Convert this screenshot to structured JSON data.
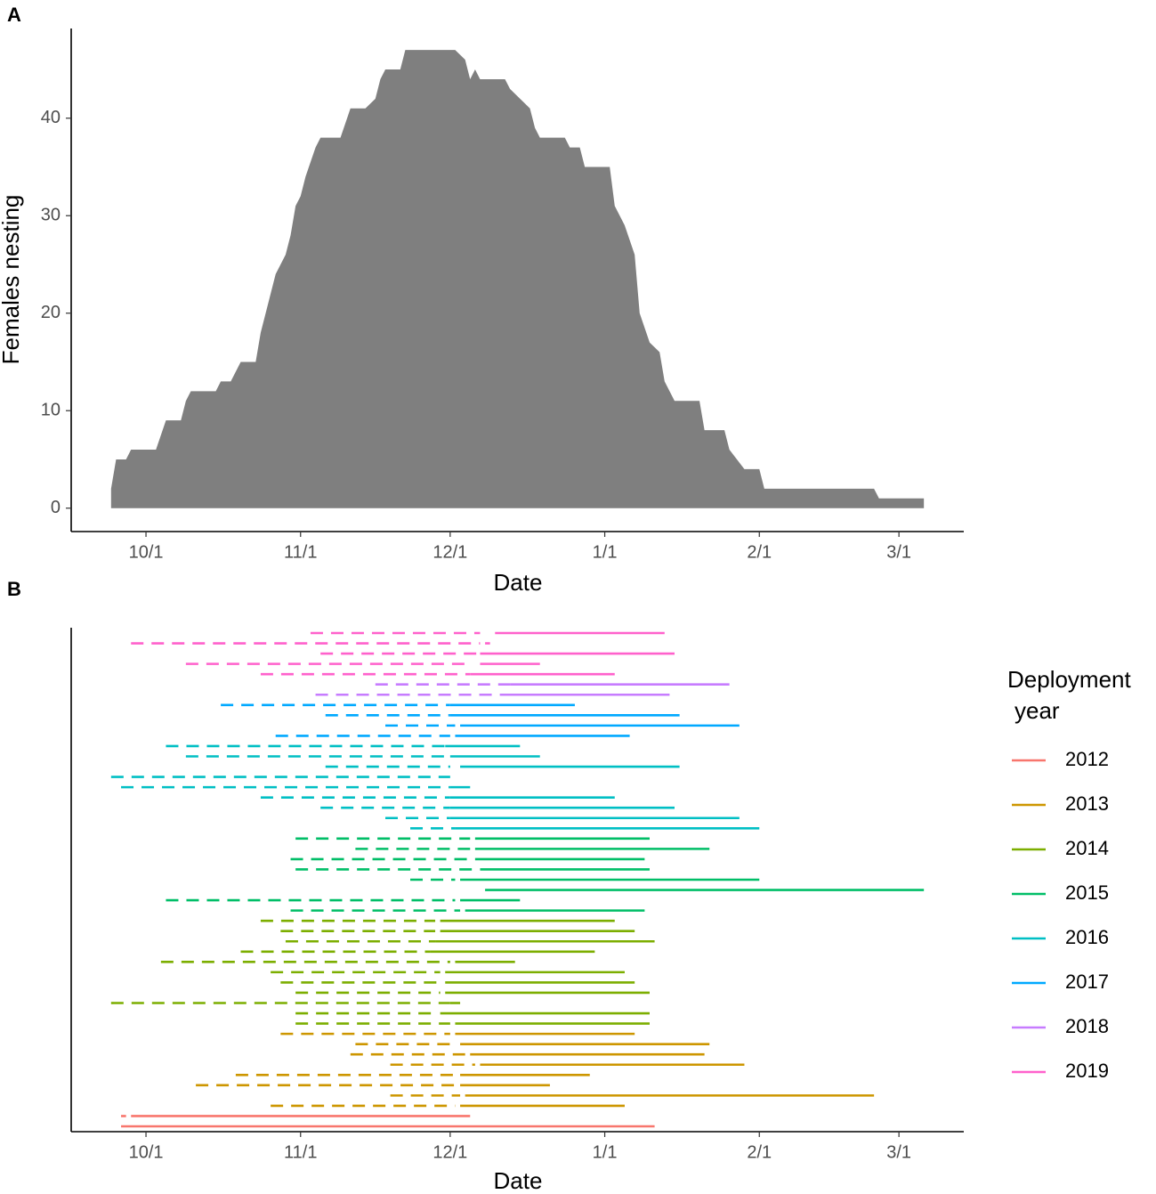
{
  "chart_data": [
    {
      "type": "area",
      "tag": "A",
      "xlabel": "Date",
      "ylabel": "Females nesting",
      "color": "#7f7f7f",
      "xlim": [
        "9/16",
        "3/14"
      ],
      "xticks": [
        "10/1",
        "11/1",
        "12/1",
        "1/1",
        "2/1",
        "3/1"
      ],
      "ylim": [
        -2.4,
        49.2
      ],
      "yticks": [
        0,
        10,
        20,
        30,
        40
      ],
      "x": [
        "9/24",
        "9/25",
        "9/27",
        "9/28",
        "10/3",
        "10/5",
        "10/8",
        "10/9",
        "10/10",
        "10/15",
        "10/16",
        "10/18",
        "10/20",
        "10/23",
        "10/24",
        "10/25",
        "10/27",
        "10/29",
        "10/30",
        "10/31",
        "11/1",
        "11/2",
        "11/4",
        "11/5",
        "11/9",
        "11/11",
        "11/14",
        "11/16",
        "11/17",
        "11/18",
        "11/21",
        "11/22",
        "12/2",
        "12/4",
        "12/5",
        "12/6",
        "12/7",
        "12/12",
        "12/13",
        "12/17",
        "12/18",
        "12/19",
        "12/24",
        "12/25",
        "12/27",
        "12/28",
        "1/2",
        "1/3",
        "1/5",
        "1/7",
        "1/8",
        "1/10",
        "1/12",
        "1/13",
        "1/15",
        "1/20",
        "1/21",
        "1/25",
        "1/26",
        "1/29",
        "2/1",
        "2/2",
        "2/24",
        "2/25",
        "3/6"
      ],
      "values": [
        2,
        5,
        5,
        6,
        6,
        9,
        9,
        11,
        12,
        12,
        13,
        13,
        15,
        15,
        18,
        20,
        24,
        26,
        28,
        31,
        32,
        34,
        37,
        38,
        38,
        41,
        41,
        42,
        44,
        45,
        45,
        47,
        47,
        46,
        44,
        45,
        44,
        44,
        43,
        41,
        39,
        38,
        38,
        37,
        37,
        35,
        35,
        31,
        29,
        26,
        20,
        17,
        16,
        13,
        11,
        11,
        8,
        8,
        6,
        4,
        4,
        2,
        2,
        1,
        1
      ]
    },
    {
      "type": "segment",
      "tag": "B",
      "xlabel": "Date",
      "legend_title": [
        "Deployment",
        "year"
      ],
      "xlim": [
        "9/16",
        "3/14"
      ],
      "xticks": [
        "10/1",
        "11/1",
        "12/1",
        "1/1",
        "2/1",
        "3/1"
      ],
      "series": [
        {
          "name": "2012",
          "color": "#F8766D",
          "rows": [
            {
              "pre": [
                "9/26",
                "9/27"
              ],
              "nest": [
                "9/28",
                "12/5"
              ]
            },
            {
              "pre": null,
              "nest": [
                "9/26",
                "1/11"
              ]
            }
          ]
        },
        {
          "name": "2013",
          "color": "#CD9600",
          "rows": [
            {
              "pre": [
                "10/28",
                "12/1"
              ],
              "nest": [
                "12/2",
                "1/7"
              ]
            },
            {
              "pre": [
                "11/12",
                "12/2"
              ],
              "nest": [
                "12/3",
                "1/22"
              ]
            },
            {
              "pre": [
                "11/11",
                "12/4"
              ],
              "nest": [
                "12/5",
                "1/21"
              ]
            },
            {
              "pre": [
                "11/19",
                "12/6"
              ],
              "nest": [
                "12/7",
                "1/29"
              ]
            },
            {
              "pre": [
                "10/19",
                "12/2"
              ],
              "nest": [
                "12/3",
                "12/29"
              ]
            },
            {
              "pre": [
                "10/11",
                "12/2"
              ],
              "nest": [
                "12/3",
                "12/21"
              ]
            },
            {
              "pre": [
                "11/19",
                "12/3"
              ],
              "nest": [
                "12/4",
                "2/24"
              ]
            },
            {
              "pre": [
                "10/26",
                "12/2"
              ],
              "nest": [
                "12/3",
                "1/5"
              ]
            }
          ]
        },
        {
          "name": "2014",
          "color": "#7CAE00",
          "rows": [
            {
              "pre": [
                "10/24",
                "11/28"
              ],
              "nest": [
                "11/29",
                "1/3"
              ]
            },
            {
              "pre": [
                "10/28",
                "11/28"
              ],
              "nest": [
                "11/29",
                "1/7"
              ]
            },
            {
              "pre": [
                "10/29",
                "11/28"
              ],
              "nest": [
                "11/28",
                "1/11"
              ]
            },
            {
              "pre": [
                "10/20",
                "11/27"
              ],
              "nest": [
                "11/27",
                "12/30"
              ]
            },
            {
              "pre": [
                "10/4",
                "12/1"
              ],
              "nest": [
                "12/2",
                "12/14"
              ]
            },
            {
              "pre": [
                "10/26",
                "11/29"
              ],
              "nest": [
                "11/30",
                "1/5"
              ]
            },
            {
              "pre": [
                "10/28",
                "11/29"
              ],
              "nest": [
                "11/30",
                "1/7"
              ]
            },
            {
              "pre": [
                "10/31",
                "11/29"
              ],
              "nest": [
                "11/30",
                "1/10"
              ]
            },
            {
              "pre": [
                "9/24",
                "12/1"
              ],
              "nest": [
                "12/1",
                "12/3"
              ]
            },
            {
              "pre": [
                "10/31",
                "11/28"
              ],
              "nest": [
                "11/29",
                "1/10"
              ]
            },
            {
              "pre": [
                "10/31",
                "12/1"
              ],
              "nest": [
                "12/2",
                "1/10"
              ]
            }
          ]
        },
        {
          "name": "2015",
          "color": "#00BE67",
          "rows": [
            {
              "pre": [
                "10/31",
                "12/5"
              ],
              "nest": [
                "12/6",
                "1/10"
              ]
            },
            {
              "pre": [
                "11/12",
                "12/5"
              ],
              "nest": [
                "12/6",
                "1/22"
              ]
            },
            {
              "pre": [
                "10/30",
                "12/5"
              ],
              "nest": [
                "12/6",
                "1/9"
              ]
            },
            {
              "pre": [
                "10/31",
                "12/6"
              ],
              "nest": [
                "12/7",
                "1/10"
              ]
            },
            {
              "pre": [
                "11/23",
                "12/2"
              ],
              "nest": [
                "12/3",
                "2/1"
              ]
            },
            {
              "pre": null,
              "nest": [
                "12/8",
                "3/6"
              ]
            },
            {
              "pre": [
                "10/5",
                "12/2"
              ],
              "nest": [
                "12/3",
                "12/15"
              ]
            },
            {
              "pre": [
                "10/30",
                "12/3"
              ],
              "nest": [
                "12/4",
                "1/9"
              ]
            }
          ]
        },
        {
          "name": "2016",
          "color": "#00BFC4",
          "rows": [
            {
              "pre": [
                "10/5",
                "11/30"
              ],
              "nest": [
                "11/30",
                "12/15"
              ]
            },
            {
              "pre": [
                "10/9",
                "12/1"
              ],
              "nest": [
                "12/1",
                "12/19"
              ]
            },
            {
              "pre": [
                "11/6",
                "12/1"
              ],
              "nest": [
                "12/3",
                "1/16"
              ]
            },
            {
              "pre": [
                "9/24",
                "12/1"
              ],
              "nest": null
            },
            {
              "pre": [
                "9/26",
                "12/1"
              ],
              "nest": [
                "12/1",
                "12/5"
              ]
            },
            {
              "pre": [
                "10/24",
                "12/1"
              ],
              "nest": [
                "12/1",
                "1/3"
              ]
            },
            {
              "pre": [
                "11/5",
                "12/1"
              ],
              "nest": [
                "12/1",
                "1/15"
              ]
            },
            {
              "pre": [
                "11/18",
                "12/1"
              ],
              "nest": [
                "12/1",
                "1/28"
              ]
            },
            {
              "pre": [
                "11/23",
                "12/2"
              ],
              "nest": [
                "12/2",
                "2/1"
              ]
            }
          ]
        },
        {
          "name": "2017",
          "color": "#00A9FF",
          "rows": [
            {
              "pre": [
                "10/16",
                "12/1"
              ],
              "nest": [
                "12/1",
                "12/26"
              ]
            },
            {
              "pre": [
                "11/6",
                "12/1"
              ],
              "nest": [
                "12/1",
                "1/16"
              ]
            },
            {
              "pre": [
                "11/18",
                "12/2"
              ],
              "nest": [
                "12/3",
                "1/28"
              ]
            },
            {
              "pre": [
                "10/27",
                "12/1"
              ],
              "nest": [
                "12/2",
                "1/6"
              ]
            }
          ]
        },
        {
          "name": "2018",
          "color": "#C77CFF",
          "rows": [
            {
              "pre": [
                "11/16",
                "12/13"
              ],
              "nest": [
                "12/13",
                "1/26"
              ]
            },
            {
              "pre": [
                "11/4",
                "12/11"
              ],
              "nest": [
                "12/11",
                "1/14"
              ]
            }
          ]
        },
        {
          "name": "2019",
          "color": "#FF61CC",
          "rows": [
            {
              "pre": [
                "11/3",
                "12/7"
              ],
              "nest": [
                "12/10",
                "1/13"
              ]
            },
            {
              "pre": [
                "9/28",
                "12/7"
              ],
              "nest": [
                "12/8",
                "12/9"
              ]
            },
            {
              "pre": [
                "11/5",
                "12/7"
              ],
              "nest": [
                "12/7",
                "1/15"
              ]
            },
            {
              "pre": [
                "10/9",
                "12/4"
              ],
              "nest": [
                "12/7",
                "12/19"
              ]
            },
            {
              "pre": [
                "10/24",
                "12/5"
              ],
              "nest": [
                "12/5",
                "1/3"
              ]
            }
          ]
        }
      ]
    }
  ]
}
